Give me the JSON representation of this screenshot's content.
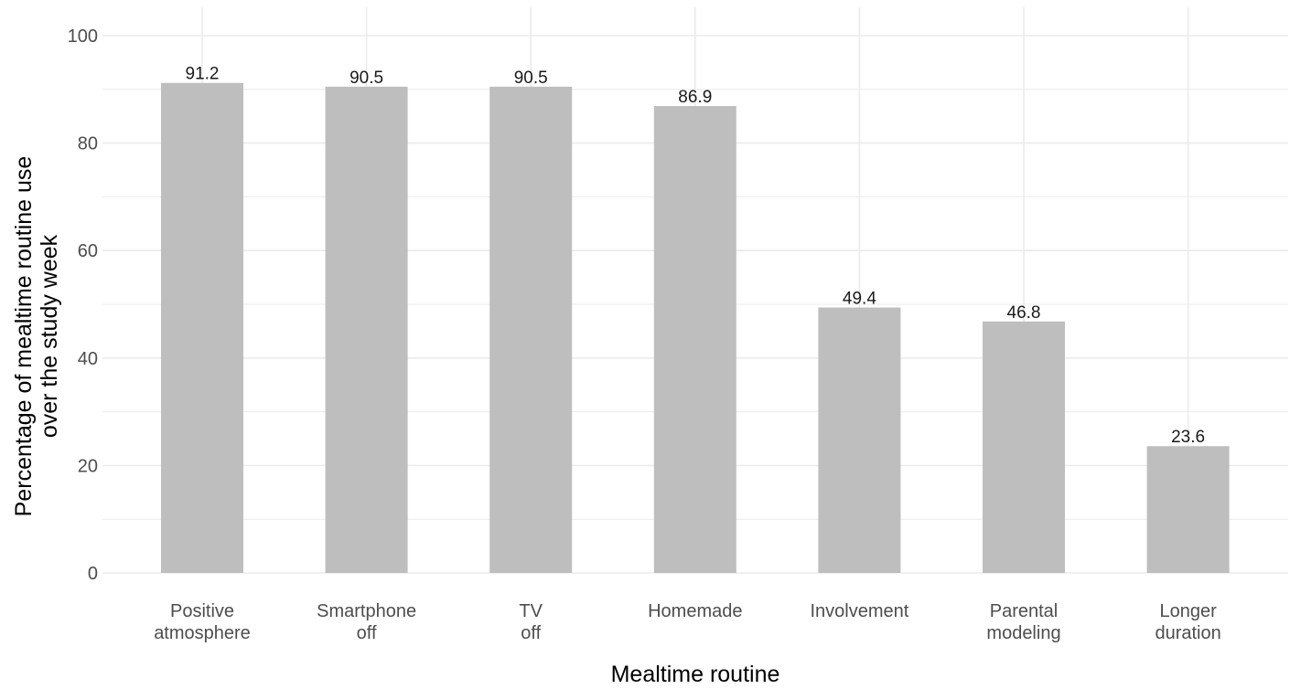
{
  "chart_data": {
    "type": "bar",
    "categories": [
      [
        "Positive",
        "atmosphere"
      ],
      [
        "Smartphone",
        "off"
      ],
      [
        "TV",
        "off"
      ],
      [
        "Homemade"
      ],
      [
        "Involvement"
      ],
      [
        "Parental",
        "modeling"
      ],
      [
        "Longer",
        "duration"
      ]
    ],
    "values": [
      91.2,
      90.5,
      90.5,
      86.9,
      49.4,
      46.8,
      23.6
    ],
    "data_labels": [
      "91.2",
      "90.5",
      "90.5",
      "86.9",
      "49.4",
      "46.8",
      "23.6"
    ],
    "xlabel": "Mealtime routine",
    "ylabel": [
      "Percentage of mealtime routine use",
      "over the study week"
    ],
    "ylim": [
      0,
      100
    ],
    "yticks": [
      0,
      20,
      40,
      60,
      80,
      100
    ],
    "grid": true,
    "bar_color": "#bebebe",
    "grid_color": "#ebebeb"
  }
}
